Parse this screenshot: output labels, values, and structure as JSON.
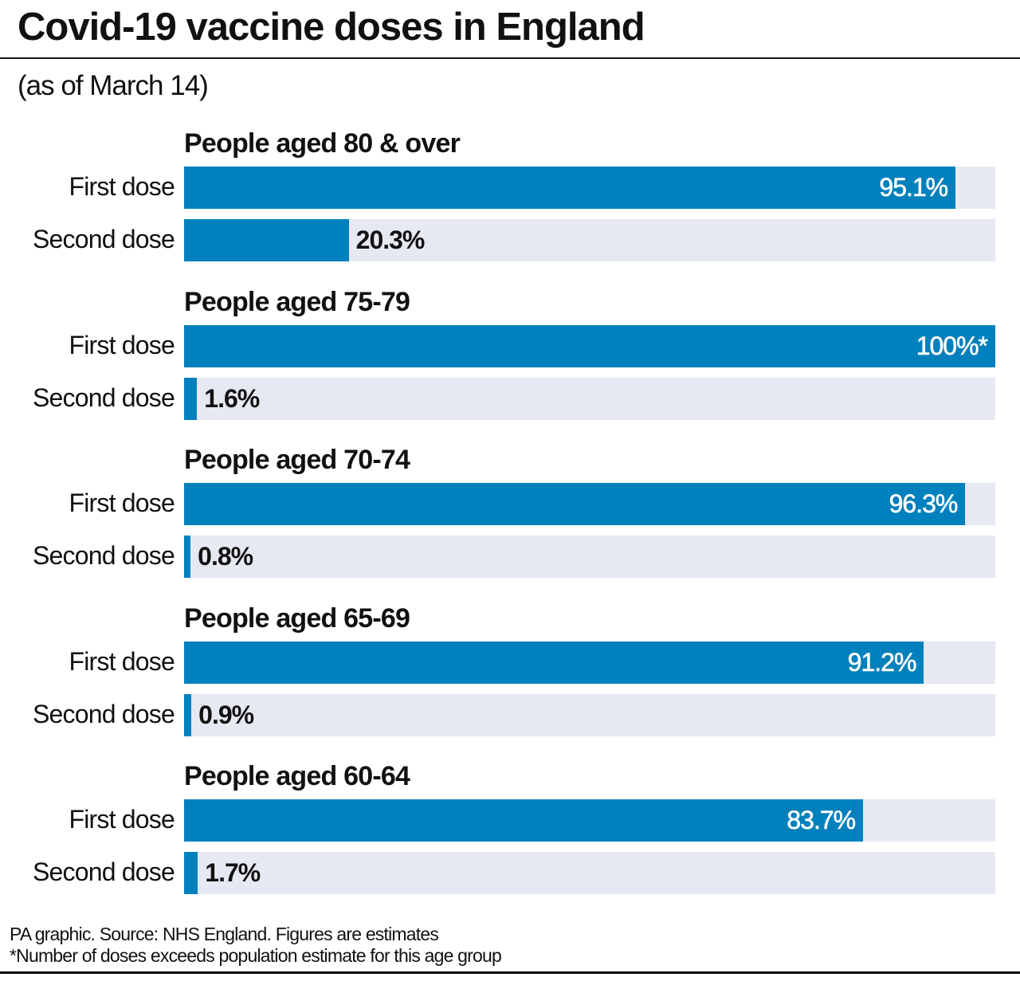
{
  "title": "Covid-19 vaccine doses in England",
  "subtitle": "(as of March 14)",
  "footer": {
    "source": "PA graphic. Source: NHS England. Figures are estimates",
    "note": "*Number of doses exceeds population estimate for this age group"
  },
  "colors": {
    "bar": "#0080bc",
    "track": "#e6e8f2"
  },
  "chart_data": {
    "type": "bar",
    "orientation": "horizontal",
    "xlim": [
      0,
      100
    ],
    "unit": "%",
    "grid": false,
    "groups": [
      {
        "name": "People aged 80 & over",
        "rows": [
          {
            "label": "First dose",
            "value": 95.1,
            "display": "95.1%"
          },
          {
            "label": "Second dose",
            "value": 20.3,
            "display": "20.3%"
          }
        ]
      },
      {
        "name": "People aged 75-79",
        "rows": [
          {
            "label": "First dose",
            "value": 100,
            "display": "100%*"
          },
          {
            "label": "Second dose",
            "value": 1.6,
            "display": "1.6%"
          }
        ]
      },
      {
        "name": "People aged 70-74",
        "rows": [
          {
            "label": "First dose",
            "value": 96.3,
            "display": "96.3%"
          },
          {
            "label": "Second dose",
            "value": 0.8,
            "display": "0.8%"
          }
        ]
      },
      {
        "name": "People aged 65-69",
        "rows": [
          {
            "label": "First dose",
            "value": 91.2,
            "display": "91.2%"
          },
          {
            "label": "Second dose",
            "value": 0.9,
            "display": "0.9%"
          }
        ]
      },
      {
        "name": "People aged 60-64",
        "rows": [
          {
            "label": "First dose",
            "value": 83.7,
            "display": "83.7%"
          },
          {
            "label": "Second dose",
            "value": 1.7,
            "display": "1.7%"
          }
        ]
      }
    ]
  }
}
